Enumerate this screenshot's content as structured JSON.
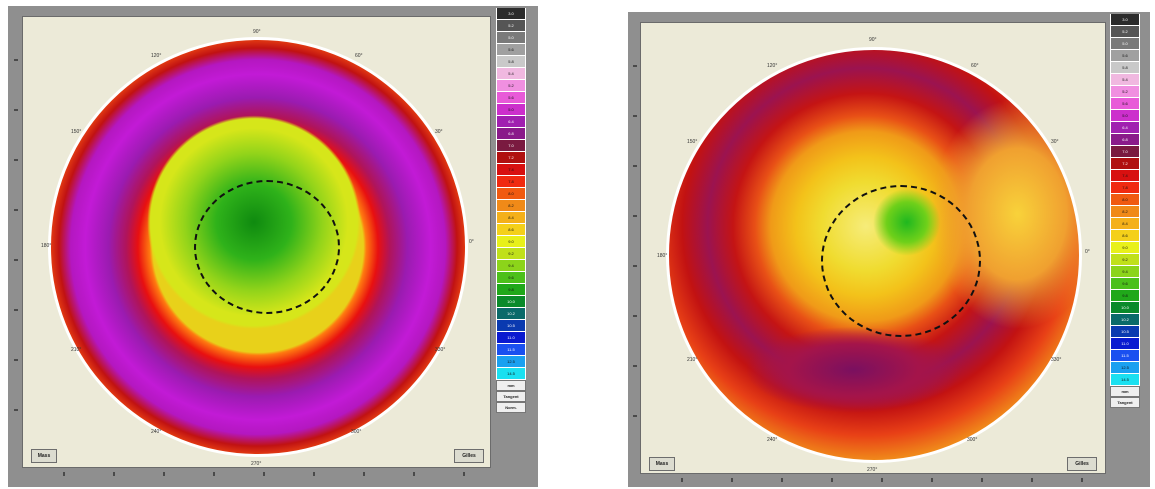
{
  "maps": [
    {
      "id": "left",
      "button_left": "Mass",
      "button_right": "Gilles",
      "degree_labels": [
        "90°",
        "120°",
        "60°",
        "150°",
        "30°",
        "180°",
        "0°",
        "210°",
        "330°",
        "240°",
        "300°",
        "270°"
      ],
      "scale_footer": [
        "mm",
        "Tangent",
        "Norm."
      ]
    },
    {
      "id": "right",
      "button_left": "Mass",
      "button_right": "Gilles",
      "degree_labels": [
        "90°",
        "120°",
        "60°",
        "150°",
        "30°",
        "180°",
        "0°",
        "210°",
        "330°",
        "240°",
        "300°",
        "270°"
      ],
      "scale_footer": [
        "mm",
        "Tangent"
      ]
    }
  ],
  "scale": {
    "labels": [
      "3.0",
      "5.2",
      "5.0",
      "5.6",
      "5.8",
      "5.4",
      "5.2",
      "5.6",
      "5.0",
      "6.4",
      "6.8",
      "7.0",
      "7.2",
      "7.4",
      "7.8",
      "8.0",
      "8.2",
      "8.4",
      "8.6",
      "9.0",
      "9.2",
      "9.4",
      "9.6",
      "9.8",
      "10.0",
      "10.2",
      "10.5",
      "11.0",
      "11.5",
      "12.5",
      "14.5"
    ],
    "colors": [
      "#2b2b2b",
      "#555555",
      "#7a7a7a",
      "#a0a0a0",
      "#c9c9c9",
      "#f0b8e0",
      "#f08fe0",
      "#e85ad8",
      "#cc2fcc",
      "#a020b0",
      "#8a1a8a",
      "#7a1a40",
      "#b01010",
      "#d81010",
      "#f02a10",
      "#f05a10",
      "#f08a18",
      "#f4b01a",
      "#f4d01a",
      "#e8f01a",
      "#c0e01a",
      "#8cd41a",
      "#4cc01a",
      "#20a81a",
      "#0a8a2a",
      "#0a6a6a",
      "#0a3ab0",
      "#0a1ad0",
      "#1a50f0",
      "#1aa0f0",
      "#1ae0f0"
    ]
  }
}
